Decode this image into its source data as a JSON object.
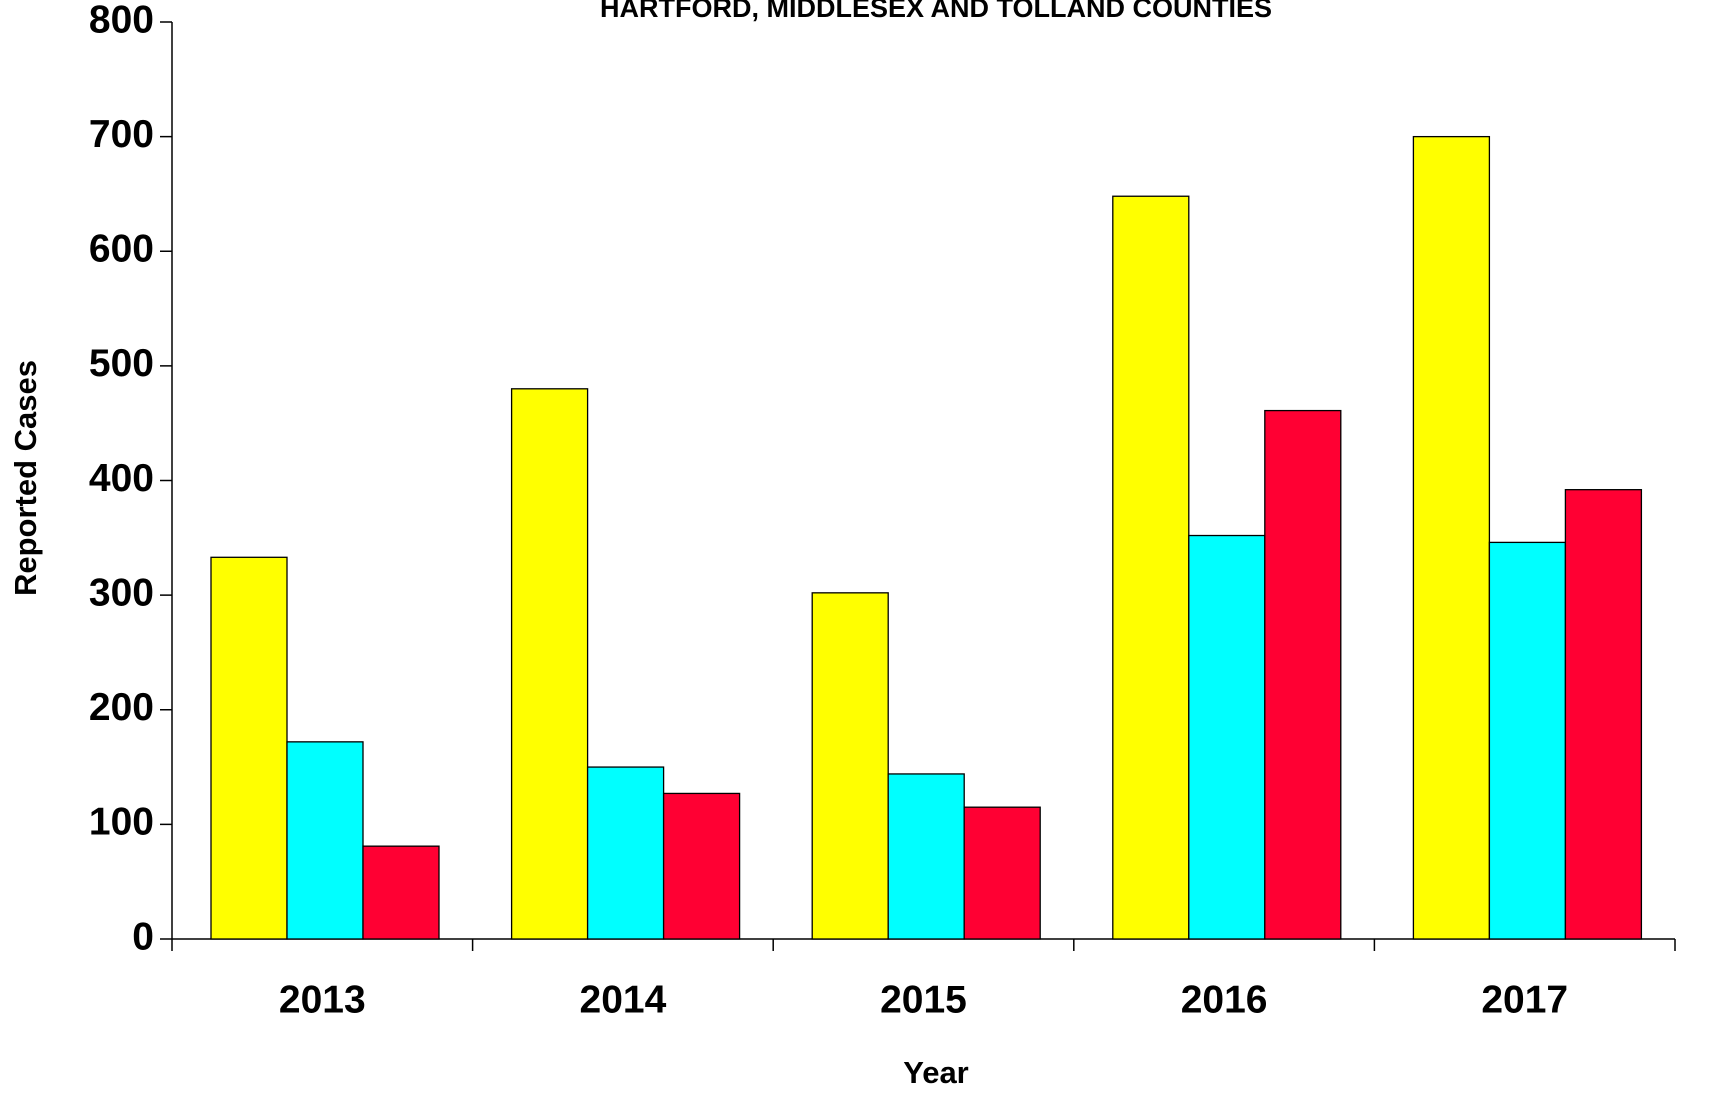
{
  "chart_data": {
    "type": "bar",
    "title": "HARTFORD, MIDDLESEX AND TOLLAND COUNTIES",
    "x_label": "Year",
    "y_label": "Reported Cases",
    "categories": [
      "2013",
      "2014",
      "2015",
      "2016",
      "2017"
    ],
    "series": [
      {
        "color": "#ffff00",
        "values": [
          333,
          480,
          302,
          648,
          700
        ]
      },
      {
        "color": "#00ffff",
        "values": [
          172,
          150,
          144,
          352,
          346
        ]
      },
      {
        "color": "#ff0033",
        "values": [
          81,
          127,
          115,
          461,
          392
        ]
      }
    ],
    "ylim": [
      0,
      800
    ],
    "yticks": [
      0,
      100,
      200,
      300,
      400,
      500,
      600,
      700,
      800
    ],
    "grid": false
  }
}
